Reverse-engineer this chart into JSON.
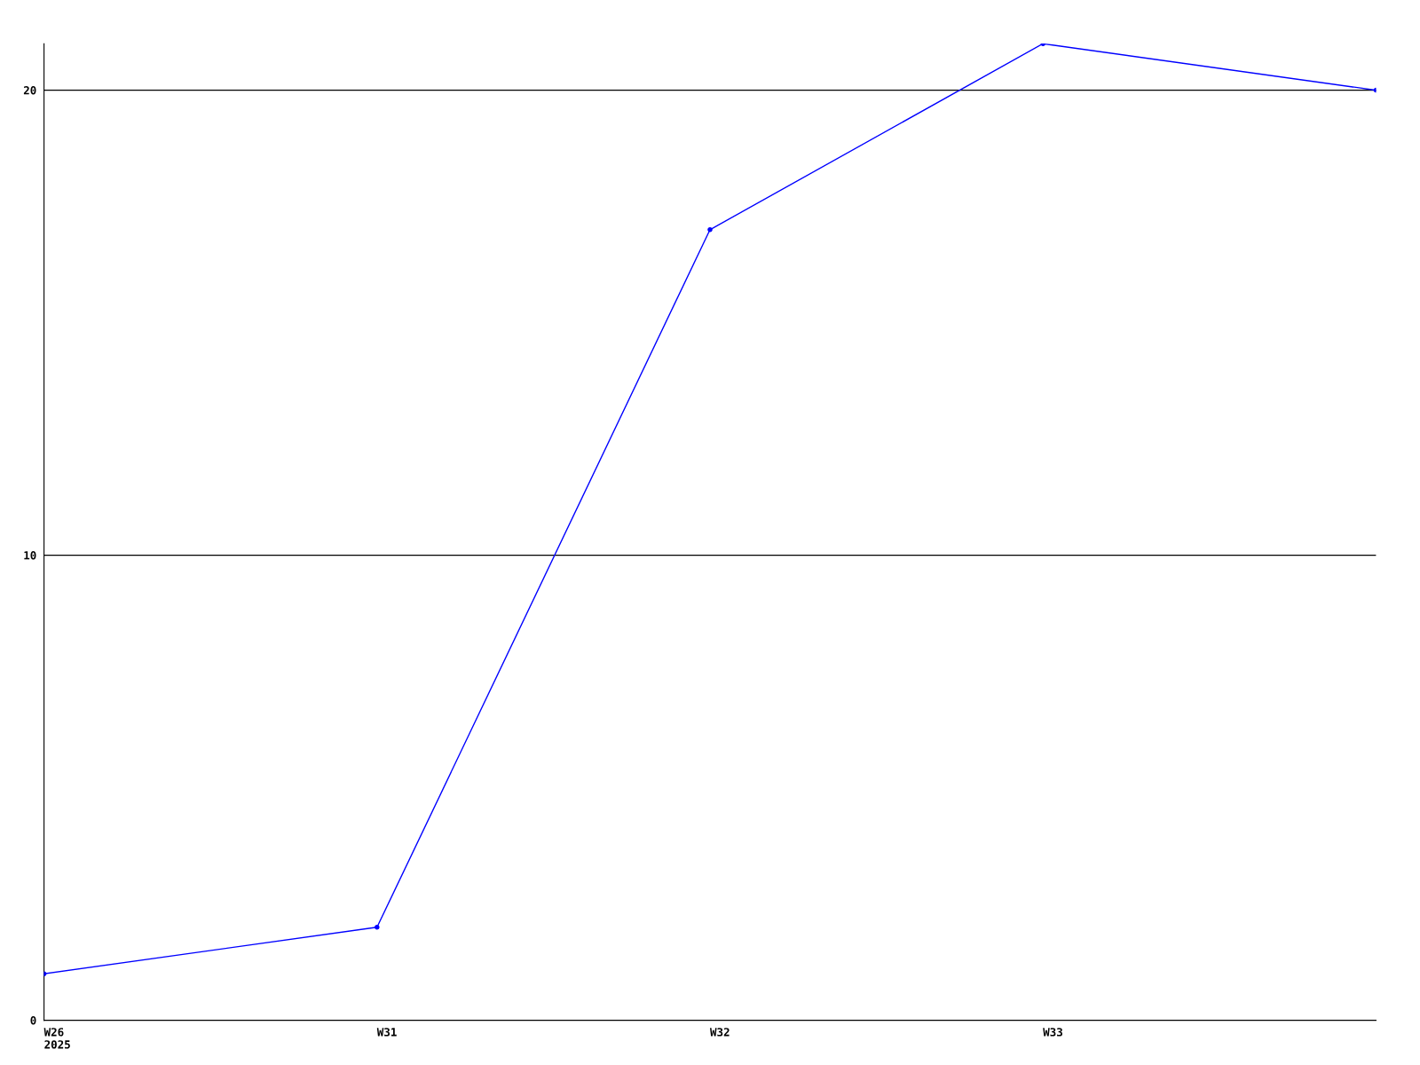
{
  "chart_data": {
    "type": "line",
    "categories": [
      "W26\n2025",
      "W31",
      "W32",
      "W33",
      null
    ],
    "series": [
      {
        "color": "#0000ff",
        "values": [
          1,
          2,
          17,
          21,
          20
        ]
      }
    ],
    "ylim": [
      0,
      21
    ],
    "yticks": [
      0,
      10,
      20
    ],
    "grid": "y",
    "marker": "circle",
    "line_style": "solid"
  }
}
